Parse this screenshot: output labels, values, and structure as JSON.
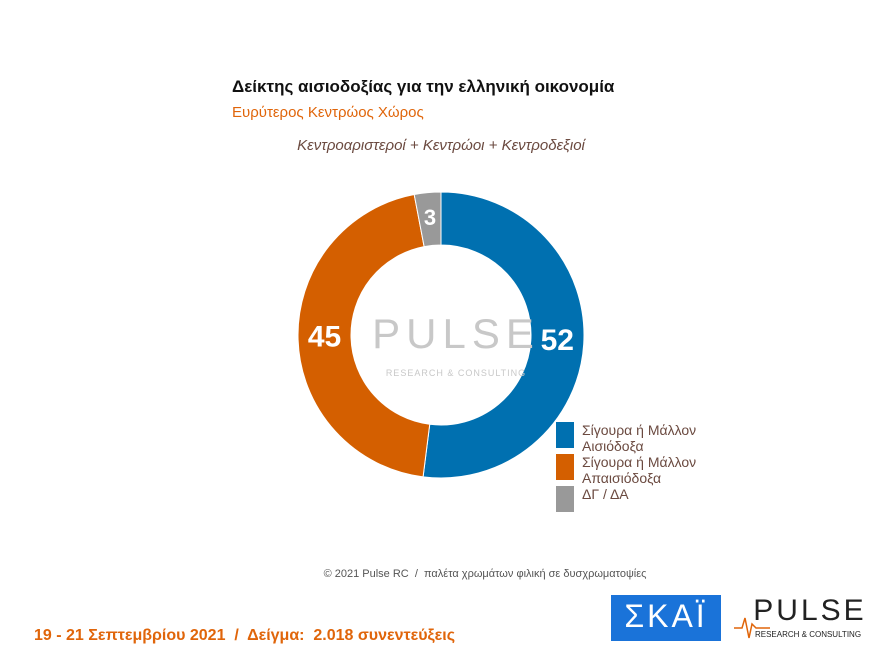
{
  "chart_data": {
    "type": "donut",
    "title": "Δείκτης αισιοδοξίας για την ελληνική οικονομία",
    "subtitle": "Ευρύτερος Κεντρώος Χώρος",
    "annotation": "Κεντροαριστεροί + Κεντρώοι + Κεντροδεξιοί",
    "categories": [
      "Σίγουρα ή Μάλλον Αισιόδοξα",
      "Σίγουρα ή Μάλλον Απαισιόδοξα",
      "ΔΓ / ΔΑ"
    ],
    "values": [
      52,
      45,
      3
    ],
    "colors": [
      "#0070b0",
      "#d45f00",
      "#999999"
    ],
    "legend": "bottom-right"
  },
  "watermark": {
    "brand": "PULSE",
    "tagline": "RESEARCH & CONSULTING"
  },
  "footer": {
    "credit": "© 2021 Pulse RC  /  παλέτα χρωμάτων φιλική σε δυσχρωματοψίες",
    "survey": "19 - 21 Σεπτεμβρίου 2021  /  Δείγμα:  2.018 συνεντεύξεις"
  },
  "logos": {
    "channel": "ΣΚΑΪ",
    "brand": "PULSE",
    "tagline": "RESEARCH & CONSULTING"
  }
}
